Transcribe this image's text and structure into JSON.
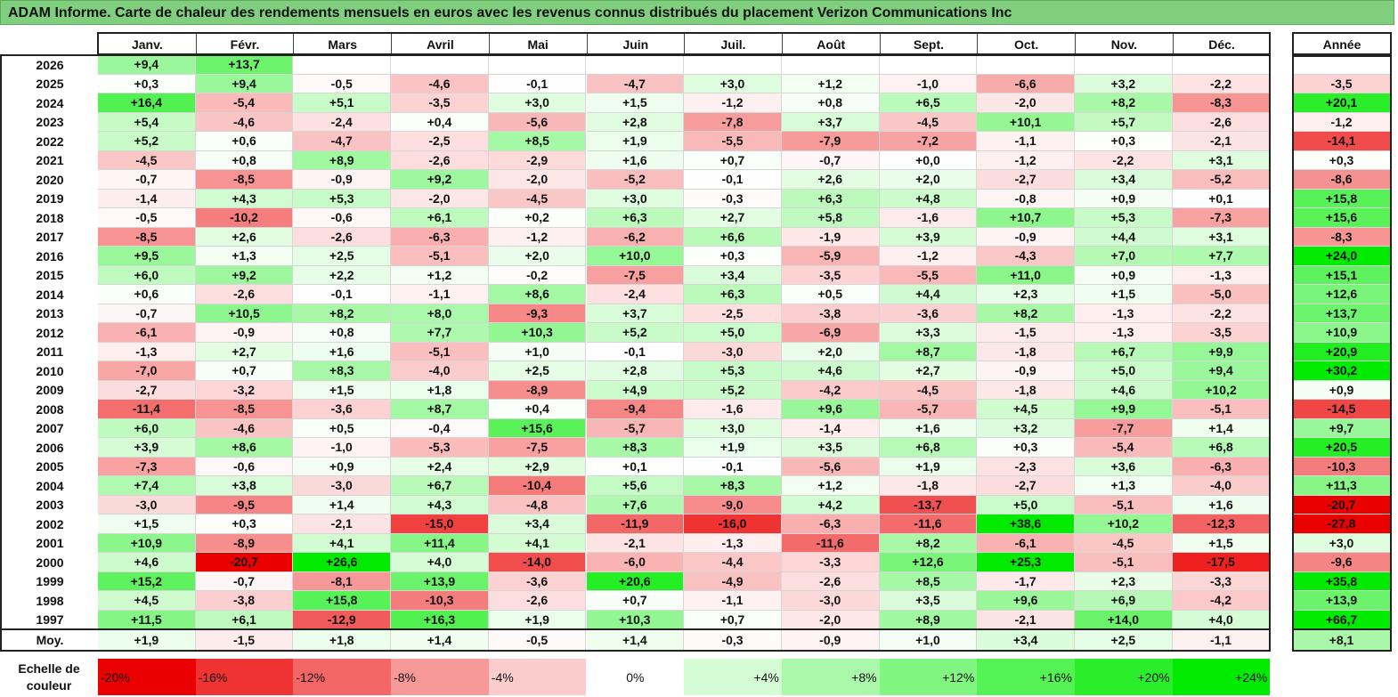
{
  "title": "ADAM Informe. Carte de chaleur des rendements mensuels en euros avec les revenus connus distribués du placement Verizon Communications Inc",
  "year_header": "Année",
  "avg_label": "Moy.",
  "scale_label": "Echelle de couleur",
  "scale_values": [
    -20,
    -16,
    -12,
    -8,
    -4,
    0,
    4,
    8,
    12,
    16,
    20,
    24
  ],
  "scale": [
    {
      "label": "-20%",
      "align": "left"
    },
    {
      "label": "-16%",
      "align": "left"
    },
    {
      "label": "-12%",
      "align": "left"
    },
    {
      "label": "-8%",
      "align": "left"
    },
    {
      "label": "-4%",
      "align": "left"
    },
    {
      "label": "0%",
      "align": "center"
    },
    {
      "label": "+4%",
      "align": "right"
    },
    {
      "label": "+8%",
      "align": "right"
    },
    {
      "label": "+12%",
      "align": "right"
    },
    {
      "label": "+16%",
      "align": "right"
    },
    {
      "label": "+20%",
      "align": "right"
    },
    {
      "label": "+24%",
      "align": "right"
    }
  ],
  "chart_data": {
    "type": "heatmap",
    "title": "ADAM Informe. Carte de chaleur des rendements mensuels en euros avec les revenus connus distribués du placement Verizon Communications Inc",
    "unit": "%",
    "columns": [
      "Janv.",
      "Févr.",
      "Mars",
      "Avril",
      "Mai",
      "Juin",
      "Juil.",
      "Août",
      "Sept.",
      "Oct.",
      "Nov.",
      "Déc."
    ],
    "rows": [
      {
        "year": "2026",
        "months": [
          9.4,
          13.7,
          null,
          null,
          null,
          null,
          null,
          null,
          null,
          null,
          null,
          null
        ],
        "annual": null
      },
      {
        "year": "2025",
        "months": [
          0.3,
          9.4,
          -0.5,
          -4.6,
          -0.1,
          -4.7,
          3.0,
          1.2,
          -1.0,
          -6.6,
          3.2,
          -2.2
        ],
        "annual": -3.5
      },
      {
        "year": "2024",
        "months": [
          16.4,
          -5.4,
          5.1,
          -3.5,
          3.0,
          1.5,
          -1.2,
          0.8,
          6.5,
          -2.0,
          8.2,
          -8.3
        ],
        "annual": 20.1
      },
      {
        "year": "2023",
        "months": [
          5.4,
          -4.6,
          -2.4,
          0.4,
          -5.6,
          2.8,
          -7.8,
          3.7,
          -4.5,
          10.1,
          5.7,
          -2.6
        ],
        "annual": -1.2
      },
      {
        "year": "2022",
        "months": [
          5.2,
          0.6,
          -4.7,
          -2.5,
          8.5,
          1.9,
          -5.5,
          -7.9,
          -7.2,
          -1.1,
          0.3,
          -2.1
        ],
        "annual": -14.1
      },
      {
        "year": "2021",
        "months": [
          -4.5,
          0.8,
          8.9,
          -2.6,
          -2.9,
          1.6,
          0.7,
          -0.7,
          0.0,
          -1.2,
          -2.2,
          3.1
        ],
        "annual": 0.3
      },
      {
        "year": "2020",
        "months": [
          -0.7,
          -8.5,
          -0.9,
          9.2,
          -2.0,
          -5.2,
          -0.1,
          2.6,
          2.0,
          -2.7,
          3.4,
          -5.2
        ],
        "annual": -8.6
      },
      {
        "year": "2019",
        "months": [
          -1.4,
          4.3,
          5.3,
          -2.0,
          -4.5,
          3.0,
          -0.3,
          6.3,
          4.8,
          -0.8,
          0.9,
          0.1
        ],
        "annual": 15.8
      },
      {
        "year": "2018",
        "months": [
          -0.5,
          -10.2,
          -0.6,
          6.1,
          0.2,
          6.3,
          2.7,
          5.8,
          -1.6,
          10.7,
          5.3,
          -7.3
        ],
        "annual": 15.6
      },
      {
        "year": "2017",
        "months": [
          -8.5,
          2.6,
          -2.6,
          -6.3,
          -1.2,
          -6.2,
          6.6,
          -1.9,
          3.9,
          -0.9,
          4.4,
          3.1
        ],
        "annual": -8.3
      },
      {
        "year": "2016",
        "months": [
          9.5,
          1.3,
          2.5,
          -5.1,
          2.0,
          10.0,
          0.3,
          -5.9,
          -1.2,
          -4.3,
          7.0,
          7.7
        ],
        "annual": 24.0
      },
      {
        "year": "2015",
        "months": [
          6.0,
          9.2,
          2.2,
          1.2,
          -0.2,
          -7.5,
          3.4,
          -3.5,
          -5.5,
          11.0,
          0.9,
          -1.3
        ],
        "annual": 15.1
      },
      {
        "year": "2014",
        "months": [
          0.6,
          -2.6,
          -0.1,
          -1.1,
          8.6,
          -2.4,
          6.3,
          0.5,
          4.4,
          2.3,
          1.5,
          -5.0
        ],
        "annual": 12.6
      },
      {
        "year": "2013",
        "months": [
          -0.7,
          10.5,
          8.2,
          8.0,
          -9.3,
          3.7,
          -2.5,
          -3.8,
          -3.6,
          8.2,
          -1.3,
          -2.2
        ],
        "annual": 13.7
      },
      {
        "year": "2012",
        "months": [
          -6.1,
          -0.9,
          0.8,
          7.7,
          10.3,
          5.2,
          5.0,
          -6.9,
          3.3,
          -1.5,
          -1.3,
          -3.5
        ],
        "annual": 10.9
      },
      {
        "year": "2011",
        "months": [
          -1.3,
          2.7,
          1.6,
          -5.1,
          1.0,
          -0.1,
          -3.0,
          2.0,
          8.7,
          -1.8,
          6.7,
          9.9
        ],
        "annual": 20.9
      },
      {
        "year": "2010",
        "months": [
          -7.0,
          0.7,
          8.3,
          -4.0,
          2.5,
          2.8,
          5.3,
          4.6,
          2.7,
          -0.9,
          5.0,
          9.4
        ],
        "annual": 30.2
      },
      {
        "year": "2009",
        "months": [
          -2.7,
          -3.2,
          1.5,
          1.8,
          -8.9,
          4.9,
          5.2,
          -4.2,
          -4.5,
          -1.8,
          4.6,
          10.2
        ],
        "annual": 0.9
      },
      {
        "year": "2008",
        "months": [
          -11.4,
          -8.5,
          -3.6,
          8.7,
          0.4,
          -9.4,
          -1.6,
          9.6,
          -5.7,
          4.5,
          9.9,
          -5.1
        ],
        "annual": -14.5
      },
      {
        "year": "2007",
        "months": [
          6.0,
          -4.6,
          0.5,
          -0.4,
          15.6,
          -5.7,
          3.0,
          -1.4,
          1.6,
          3.2,
          -7.7,
          1.4
        ],
        "annual": 9.7
      },
      {
        "year": "2006",
        "months": [
          3.9,
          8.6,
          -1.0,
          -5.3,
          -7.5,
          8.3,
          1.9,
          3.5,
          6.8,
          0.3,
          -5.4,
          6.8
        ],
        "annual": 20.5
      },
      {
        "year": "2005",
        "months": [
          -7.3,
          -0.6,
          0.9,
          2.4,
          2.9,
          0.1,
          -0.1,
          -5.6,
          1.9,
          -2.3,
          3.6,
          -6.3
        ],
        "annual": -10.3
      },
      {
        "year": "2004",
        "months": [
          7.4,
          3.8,
          -3.0,
          6.7,
          -10.4,
          5.6,
          8.3,
          1.2,
          -1.8,
          -2.7,
          1.3,
          -4.0
        ],
        "annual": 11.3
      },
      {
        "year": "2003",
        "months": [
          -3.0,
          -9.5,
          1.4,
          4.3,
          -4.8,
          7.6,
          -9.0,
          4.2,
          -13.7,
          5.0,
          -5.1,
          1.6
        ],
        "annual": -20.7
      },
      {
        "year": "2002",
        "months": [
          1.5,
          0.3,
          -2.1,
          -15.0,
          3.4,
          -11.9,
          -16.0,
          -6.3,
          -11.6,
          38.6,
          10.2,
          -12.3
        ],
        "annual": -27.8
      },
      {
        "year": "2001",
        "months": [
          10.9,
          -8.9,
          4.1,
          11.4,
          4.1,
          -2.1,
          -1.3,
          -11.6,
          8.2,
          -6.1,
          -4.5,
          1.5
        ],
        "annual": 3.0
      },
      {
        "year": "2000",
        "months": [
          4.6,
          -20.7,
          26.6,
          4.0,
          -14.0,
          -6.0,
          -4.4,
          -3.3,
          12.6,
          25.3,
          -5.1,
          -17.5
        ],
        "annual": -9.6
      },
      {
        "year": "1999",
        "months": [
          15.2,
          -0.7,
          -8.1,
          13.9,
          -3.6,
          20.6,
          -4.9,
          -2.6,
          8.5,
          -1.7,
          2.3,
          -3.3
        ],
        "annual": 35.8
      },
      {
        "year": "1998",
        "months": [
          4.5,
          -3.8,
          15.8,
          -10.3,
          -2.6,
          0.7,
          -1.1,
          -3.0,
          3.5,
          9.6,
          6.9,
          -4.2
        ],
        "annual": 13.9
      },
      {
        "year": "1997",
        "months": [
          11.5,
          6.1,
          -12.9,
          16.3,
          1.9,
          10.3,
          0.7,
          -2.0,
          8.9,
          -2.1,
          14.0,
          4.0
        ],
        "annual": 66.7
      }
    ],
    "average": {
      "months": [
        1.9,
        -1.5,
        1.8,
        1.4,
        -0.5,
        1.4,
        -0.3,
        -0.9,
        1.0,
        3.4,
        2.5,
        -1.1
      ],
      "annual": 8.1
    }
  }
}
